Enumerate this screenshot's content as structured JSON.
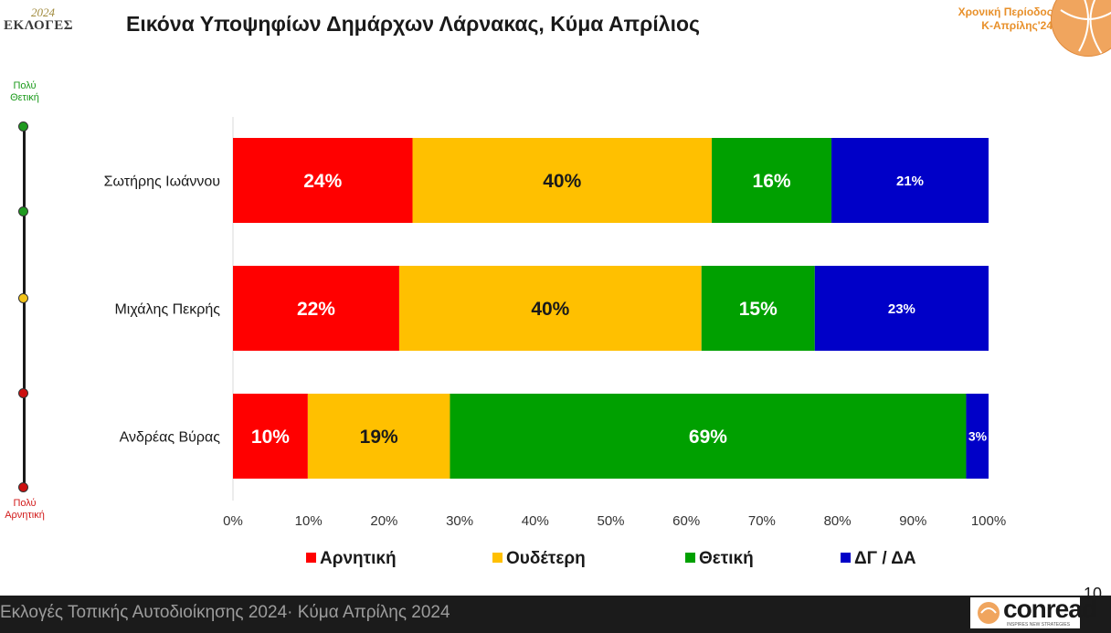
{
  "header": {
    "title": "Εικόνα Υποψηφίων Δημάρχων Λάρνακας, Κύμα Απρίλιος",
    "logo_year": "2024",
    "logo_text": "ΕΚΛΟΓΕΣ",
    "period_line1": "Χρονική Περίοδος",
    "period_line2": "Κ-Απρίλης'24"
  },
  "scale": {
    "top_label": "Πολύ Θετική",
    "bottom_label": "Πολύ Αρνητική",
    "dot_colors": [
      "#1f9a1f",
      "#1f9a1f",
      "#f2c318",
      "#cc1111",
      "#cc1111"
    ]
  },
  "chart_data": {
    "type": "bar",
    "orientation": "horizontal",
    "stacked": "100%",
    "categories": [
      "Σωτήρης Ιωάννου",
      "Μιχάλης Πεκρής",
      "Ανδρέας Βύρας"
    ],
    "series": [
      {
        "name": "Αρνητική",
        "color": "#ff0000",
        "values": [
          24,
          22,
          10
        ]
      },
      {
        "name": "Ουδέτερη",
        "color": "#ffc000",
        "values": [
          40,
          40,
          19
        ]
      },
      {
        "name": "Θετική",
        "color": "#00a000",
        "values": [
          16,
          15,
          69
        ]
      },
      {
        "name": "ΔΓ / ΔΑ",
        "color": "#0000c8",
        "values": [
          21,
          23,
          3
        ]
      }
    ],
    "xlim": [
      0,
      100
    ],
    "x_ticks": [
      "0%",
      "10%",
      "20%",
      "30%",
      "40%",
      "50%",
      "60%",
      "70%",
      "80%",
      "90%",
      "100%"
    ],
    "legend_position": "bottom",
    "grid": false
  },
  "footer": {
    "text": "Εκλογές Τοπικής Αυτοδιοίκησης 2024· Κύμα Απρίλης 2024",
    "brand": "conread",
    "brand_tagline": "INSPIRES NEW STRATEGIES",
    "page_number": "10"
  }
}
